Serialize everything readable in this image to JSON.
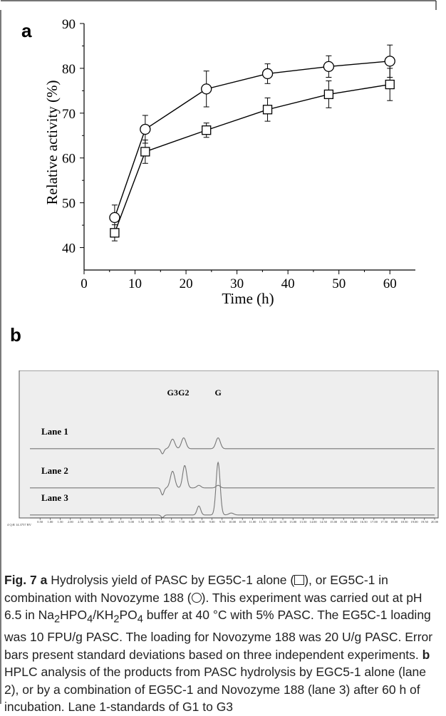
{
  "chart_data": [
    {
      "panel": "a",
      "type": "line",
      "xlabel": "Time (h)",
      "ylabel": "Relative activity (%)",
      "xlim": [
        0,
        65
      ],
      "ylim": [
        35,
        90
      ],
      "xticks": [
        0,
        10,
        20,
        30,
        40,
        50,
        60
      ],
      "yticks": [
        40,
        50,
        60,
        70,
        80,
        90
      ],
      "x": [
        6,
        12,
        24,
        36,
        48,
        60
      ],
      "series": [
        {
          "marker": "circle",
          "values": [
            46.7,
            66.4,
            75.4,
            78.8,
            80.4,
            81.6
          ],
          "errors": [
            2.8,
            3.1,
            4.0,
            2.2,
            2.4,
            3.6
          ]
        },
        {
          "marker": "square",
          "values": [
            43.3,
            61.4,
            66.2,
            70.8,
            74.2,
            76.4
          ],
          "errors": [
            1.8,
            2.6,
            1.6,
            2.6,
            3.0,
            3.6
          ]
        }
      ]
    },
    {
      "panel": "b",
      "type": "line",
      "lanes": [
        {
          "label": "Lane 1",
          "baseline": 0.12,
          "peaks": [
            {
              "x": 6.55,
              "h": -0.4,
              "w": 0.07
            },
            {
              "x": 7.05,
              "h": 0.75,
              "w": 0.11
            },
            {
              "x": 7.6,
              "h": 0.85,
              "w": 0.11
            },
            {
              "x": 9.3,
              "h": 0.85,
              "w": 0.11
            }
          ]
        },
        {
          "label": "Lane 2",
          "baseline": 0.12,
          "peaks": [
            {
              "x": 6.55,
              "h": -0.55,
              "w": 0.07
            },
            {
              "x": 7.05,
              "h": 1.3,
              "w": 0.11
            },
            {
              "x": 7.65,
              "h": 1.75,
              "w": 0.1
            },
            {
              "x": 8.35,
              "h": 0.2,
              "w": 0.1
            },
            {
              "x": 9.3,
              "h": 0.2,
              "w": 0.1
            }
          ]
        },
        {
          "label": "Lane 3",
          "baseline": 0.12,
          "peaks": [
            {
              "x": 6.55,
              "h": -0.2,
              "w": 0.07
            },
            {
              "x": 8.35,
              "h": 0.7,
              "w": 0.09
            },
            {
              "x": 9.3,
              "h": 4.1,
              "w": 0.1
            },
            {
              "x": 9.95,
              "h": 0.15,
              "w": 0.12
            }
          ]
        }
      ],
      "peak_labels": [
        {
          "text": "G3",
          "x": 7.05
        },
        {
          "text": "G2",
          "x": 7.6
        },
        {
          "text": "G",
          "x": 9.3
        }
      ],
      "xlim": [
        0,
        20
      ],
      "xticks": [
        "0.50",
        "1.00",
        "1.50",
        "2.00",
        "2.50",
        "3.00",
        "3.50",
        "4.00",
        "4.50",
        "5.00",
        "5.50",
        "6.00",
        "6.50",
        "7.00",
        "7.50",
        "8.00",
        "8.50",
        "9.00",
        "9.50",
        "10.00",
        "10.50",
        "11.00",
        "11.50",
        "12.00",
        "12.50",
        "13.00",
        "13.50",
        "14.00",
        "14.50",
        "15.00",
        "15.50",
        "16.00",
        "16.50",
        "17.00",
        "17.50",
        "18.00",
        "18.50",
        "19.00",
        "19.50",
        "20.00"
      ],
      "corner_note": "4 Q:R 14.3757 BV"
    }
  ],
  "labels": {
    "panel_a": "a",
    "panel_b": "b"
  },
  "caption": {
    "fig_label": "Fig. 7",
    "a_label": "a",
    "text_1": "Hydrolysis yield of PASC by EG5C-1 alone (",
    "text_2": "), or EG5C-1 in combination with Novozyme 188 (",
    "text_3": "). This experiment was carried out at pH 6.5 in Na",
    "sub_2a": "2",
    "text_4": "HPO",
    "sub_4a": "4",
    "text_5": "/KH",
    "sub_2b": "2",
    "text_6": "PO",
    "sub_4b": "4",
    "text_7": " buffer at 40 °C with 5% PASC. The EG5C-1 loading was 10 FPU/g PASC. The loading for Novozyme 188 was 20 U/g PASC. Error bars present standard deviations based on three independent experiments.",
    "b_label": "b",
    "text_8": "HPLC analysis of the products from PASC hydrolysis by EGC5-1 alone (lane 2), or by a combination of EG5C-1 and Novozyme 188 (lane 3) after 60 h of incubation. Lane 1-standards of G1 to G3"
  },
  "colors": {
    "plot_line": "#000000",
    "hplc_line": "#777777",
    "hplc_bg": "#eeeeee",
    "frame": "#222222"
  }
}
